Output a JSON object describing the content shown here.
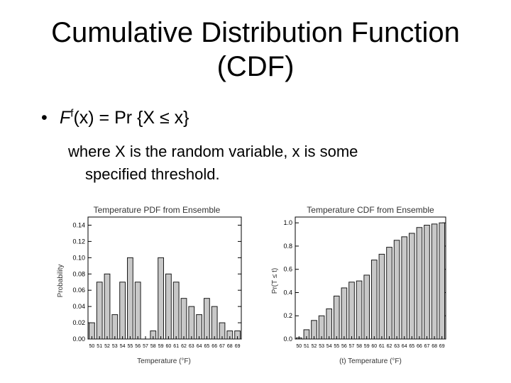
{
  "slide": {
    "title_line1": "Cumulative Distribution Function",
    "title_line2": "(CDF)",
    "bullet_main": "F",
    "bullet_sup": "f",
    "bullet_rest": "(x) = Pr {X ≤ x}",
    "sub_line1": "where X is the random variable, x is some",
    "sub_line2": "specified threshold."
  },
  "chart_data": [
    {
      "type": "bar",
      "title": "Temperature PDF from Ensemble",
      "xlabel": "Temperature (°F)",
      "ylabel": "Probability",
      "categories": [
        "50",
        "51",
        "52",
        "53",
        "54",
        "55",
        "56",
        "57",
        "58",
        "59",
        "60",
        "61",
        "62",
        "63",
        "64",
        "65",
        "66",
        "67",
        "68",
        "69"
      ],
      "values": [
        0.02,
        0.07,
        0.08,
        0.03,
        0.07,
        0.1,
        0.07,
        0.0,
        0.01,
        0.1,
        0.08,
        0.07,
        0.05,
        0.04,
        0.03,
        0.05,
        0.04,
        0.02,
        0.01,
        0.01
      ],
      "ylim": [
        0,
        0.15
      ],
      "yticks": [
        "0.00",
        "0.02",
        "0.04",
        "0.06",
        "0.08",
        "0.10",
        "0.12",
        "0.14"
      ]
    },
    {
      "type": "bar",
      "title": "Temperature CDF from Ensemble",
      "xlabel": "(t)  Temperature (°F)",
      "ylabel": "Pr(T ≤ t)",
      "categories": [
        "50",
        "51",
        "52",
        "53",
        "54",
        "55",
        "56",
        "57",
        "58",
        "59",
        "60",
        "61",
        "62",
        "63",
        "64",
        "65",
        "66",
        "67",
        "68",
        "69"
      ],
      "values": [
        0.01,
        0.08,
        0.16,
        0.2,
        0.26,
        0.37,
        0.44,
        0.49,
        0.5,
        0.55,
        0.68,
        0.73,
        0.79,
        0.85,
        0.88,
        0.91,
        0.96,
        0.98,
        0.99,
        1.0
      ],
      "ylim": [
        0,
        1.05
      ],
      "yticks": [
        "0.0",
        "0.2",
        "0.4",
        "0.6",
        "0.8",
        "1.0"
      ]
    }
  ],
  "colors": {
    "bar_fill": "#c8c8c8",
    "bar_stroke": "#1a1a1a",
    "frame": "#000000",
    "text": "#000000"
  }
}
